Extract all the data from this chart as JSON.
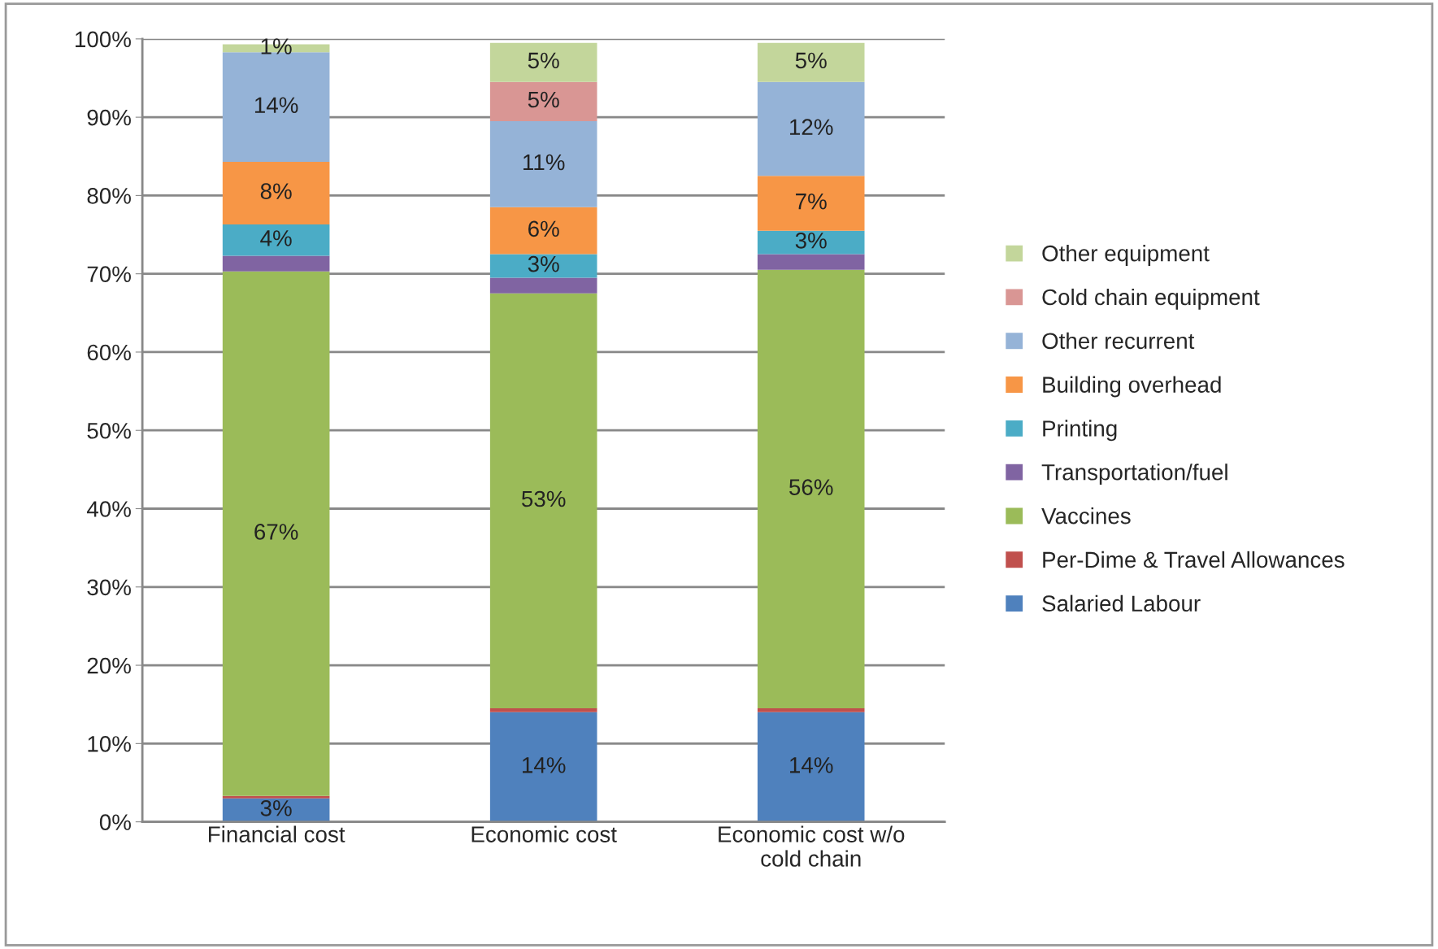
{
  "chart_data": {
    "type": "bar",
    "stacked": true,
    "categories": [
      "Financial cost",
      "Economic cost",
      "Economic cost w/o\ncold chain"
    ],
    "ylim": [
      0,
      100
    ],
    "yticks": [
      {
        "value": 0,
        "label": "0%"
      },
      {
        "value": 10,
        "label": "10%"
      },
      {
        "value": 20,
        "label": "20%"
      },
      {
        "value": 30,
        "label": "30%"
      },
      {
        "value": 40,
        "label": "40%"
      },
      {
        "value": 50,
        "label": "50%"
      },
      {
        "value": 60,
        "label": "60%"
      },
      {
        "value": 70,
        "label": "70%"
      },
      {
        "value": 80,
        "label": "80%"
      },
      {
        "value": 90,
        "label": "90%"
      },
      {
        "value": 100,
        "label": "100%"
      }
    ],
    "grid": "y",
    "legend": "right",
    "series": [
      {
        "name": "Salaried Labour",
        "color": "#4f81bd",
        "values": [
          3,
          14,
          14
        ],
        "value_labels": [
          "3%",
          "14%",
          "14%"
        ]
      },
      {
        "name": "Per-Dime & Travel Allowances",
        "color": "#c0504d",
        "values": [
          0.3,
          0.5,
          0.5
        ],
        "value_labels": [
          null,
          null,
          null
        ]
      },
      {
        "name": "Vaccines",
        "color": "#9bbb59",
        "values": [
          67,
          53,
          56
        ],
        "value_labels": [
          "67%",
          "53%",
          "56%"
        ]
      },
      {
        "name": "Transportation/fuel",
        "color": "#8064a2",
        "values": [
          2,
          2,
          2
        ],
        "value_labels": [
          null,
          null,
          null
        ]
      },
      {
        "name": "Printing",
        "color": "#4bacc6",
        "values": [
          4,
          3,
          3
        ],
        "value_labels": [
          "4%",
          "3%",
          "3%"
        ]
      },
      {
        "name": "Building overhead",
        "color": "#f79646",
        "values": [
          8,
          6,
          7
        ],
        "value_labels": [
          "8%",
          "6%",
          "7%"
        ]
      },
      {
        "name": "Other recurrent",
        "color": "#95b3d7",
        "values": [
          14,
          11,
          12
        ],
        "value_labels": [
          "14%",
          "11%",
          "12%"
        ]
      },
      {
        "name": "Cold chain equipment",
        "color": "#d99694",
        "values": [
          0,
          5,
          0
        ],
        "value_labels": [
          null,
          "5%",
          null
        ]
      },
      {
        "name": "Other equipment",
        "color": "#c3d69b",
        "values": [
          1,
          5,
          5
        ],
        "value_labels": [
          "1%",
          "5%",
          "5%"
        ]
      }
    ]
  }
}
